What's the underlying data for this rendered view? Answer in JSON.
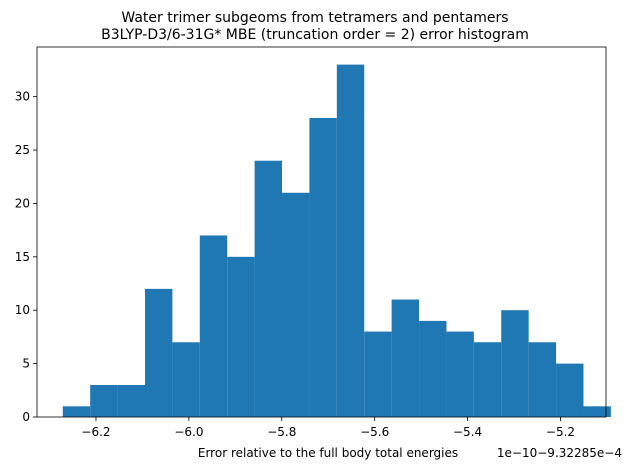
{
  "chart_data": {
    "type": "bar",
    "title_lines": [
      "Water trimer subgeoms from tetramers and pentamers",
      "B3LYP-D3/6-31G* MBE (truncation order = 2) error histogram"
    ],
    "xlabel": "Error relative to the full body total energies",
    "ylabel": "",
    "offset_text": "1e−10−9.32285e−4",
    "bar_color": "#1f77b4",
    "xlim": [
      -6.327,
      -5.102
    ],
    "ylim": [
      0,
      34.65
    ],
    "bins": {
      "edges": [
        -6.2715,
        -6.2125,
        -6.1535,
        -6.0945,
        -6.0355,
        -5.9765,
        -5.9175,
        -5.8585,
        -5.7995,
        -5.7405,
        -5.6815,
        -5.6225,
        -5.5635,
        -5.5045,
        -5.4455,
        -5.3865,
        -5.3275,
        -5.2685,
        -5.2095,
        -5.1505
      ],
      "width": 0.059,
      "counts": [
        1,
        3,
        3,
        12,
        7,
        17,
        15,
        24,
        21,
        28,
        33,
        8,
        11,
        9,
        8,
        7,
        10,
        7,
        5,
        1
      ]
    },
    "x_ticks": [
      -6.2,
      -6.0,
      -5.8,
      -5.6,
      -5.4,
      -5.2
    ],
    "x_tick_labels": [
      "−6.2",
      "−6.0",
      "−5.8",
      "−5.6",
      "−5.4",
      "−5.2"
    ],
    "y_ticks": [
      0,
      5,
      10,
      15,
      20,
      25,
      30
    ],
    "y_tick_labels": [
      "0",
      "5",
      "10",
      "15",
      "20",
      "25",
      "30"
    ],
    "grid": false,
    "legend": "none"
  }
}
